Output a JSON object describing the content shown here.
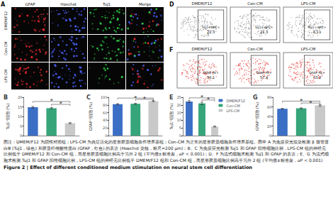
{
  "panels": {
    "A": {
      "label": "A",
      "columns": [
        "GFAP",
        "Hoechst",
        "Tuj1",
        "Merge"
      ],
      "rows": [
        "DMEM/F12",
        "Con-CM",
        "LPS-CM"
      ]
    },
    "D": {
      "label": "D",
      "plots": [
        {
          "title": "DMEM/F12",
          "gate": "Tuj1+APC+",
          "percent": 22.3
        },
        {
          "title": "Con-CM",
          "gate": "Tuj1+APC+",
          "percent": 21.3
        },
        {
          "title": "LPS-CM",
          "gate": "Tuj1+APC+",
          "percent": 6.11
        }
      ]
    },
    "F": {
      "label": "F",
      "plots": [
        {
          "title": "DMEM/F12",
          "gate": "GFAP PE+",
          "percent": 56.1
        },
        {
          "title": "Con-CM",
          "gate": "GFAP PE+",
          "percent": 57.4
        },
        {
          "title": "LPS-CM",
          "gate": "GFAP PE+",
          "percent": 63.2
        }
      ]
    }
  },
  "chart_data": [
    {
      "type": "bar",
      "title": "B",
      "y_label": "Tuj1⁺细胞 (%)",
      "categories": [
        "DMEM/F12",
        "Con-CM",
        "LPS-CM"
      ],
      "values": [
        14.8,
        14.3,
        6.5
      ],
      "errors": [
        0.4,
        0.4,
        0.3
      ],
      "colors": [
        "#3b6fc6",
        "#36a57a",
        "#c9c9c9"
      ],
      "ylim": [
        0,
        20
      ],
      "yticks": [
        0,
        5,
        10,
        15,
        20
      ],
      "brackets": [
        {
          "from": 0,
          "to": 2,
          "y": 17.8,
          "label": "a"
        },
        {
          "from": 1,
          "to": 2,
          "y": 16.3,
          "label": "a"
        }
      ],
      "grid": false,
      "tick_labels": "y"
    },
    {
      "type": "bar",
      "title": "C",
      "y_label": "GFAP⁺细胞 (%)",
      "categories": [
        "DMEM/F12",
        "Con-CM",
        "LPS-CM"
      ],
      "values": [
        82,
        83,
        90
      ],
      "errors": [
        1.5,
        1.5,
        1.5
      ],
      "colors": [
        "#3b6fc6",
        "#36a57a",
        "#c9c9c9"
      ],
      "ylim": [
        0,
        100
      ],
      "yticks": [
        0,
        20,
        40,
        60,
        80,
        100
      ],
      "brackets": [
        {
          "from": 0,
          "to": 2,
          "y": 98,
          "label": "a"
        },
        {
          "from": 1,
          "to": 2,
          "y": 94.5,
          "label": "a"
        }
      ],
      "grid": false,
      "tick_labels": "y"
    },
    {
      "type": "bar",
      "title": "E",
      "y_label": "Tuj1⁺细胞 (%)",
      "categories": [
        "DMEM/F12",
        "Con-CM",
        "LPS-CM"
      ],
      "values": [
        22.2,
        21.0,
        5.9
      ],
      "errors": [
        0.6,
        0.8,
        0.3
      ],
      "colors": [
        "#3b6fc6",
        "#36a57a",
        "#c9c9c9"
      ],
      "ylim": [
        0,
        25
      ],
      "yticks": [
        0,
        5,
        10,
        15,
        20,
        25
      ],
      "brackets": [
        {
          "from": 0,
          "to": 2,
          "y": 24.6,
          "label": "a"
        },
        {
          "from": 1,
          "to": 2,
          "y": 23.2,
          "label": "a"
        }
      ],
      "grid": false,
      "tick_labels": "y",
      "legend": "upper right"
    },
    {
      "type": "bar",
      "title": "G",
      "y_label": "GFAP⁺细胞 (%)",
      "categories": [
        "DMEM/F12",
        "Con-CM",
        "LPS-CM"
      ],
      "values": [
        56,
        57,
        63
      ],
      "errors": [
        1,
        1,
        1.5
      ],
      "colors": [
        "#3b6fc6",
        "#36a57a",
        "#c9c9c9"
      ],
      "ylim": [
        0,
        80
      ],
      "yticks": [
        0,
        20,
        40,
        60,
        80
      ],
      "brackets": [
        {
          "from": 0,
          "to": 2,
          "y": 72,
          "label": "a"
        },
        {
          "from": 1,
          "to": 2,
          "y": 68,
          "label": "a"
        }
      ],
      "grid": false,
      "tick_labels": "y"
    }
  ],
  "caption": "图注：DMEM/F12 为阴性对照组；LPS-CM 为炎症活化的星形胶质细胞条件培养基组；Con-CM 为正常的星形胶质细胞条件培养基组。图中 A 为免疫荧光双染检测 β 微管蛋白Ⅲ (Tuj1，绿色) 和胶质纤维酸性蛋白 (GFAP，红色) 的表达 (Hoechst 染核，标尺=200 μm)；B、C 为免疫荧光检测 Tuj1 和 GFAP 阳性细胞比例，LPS-CM 组的神经元比例低于 DMEM/F12 和 Con-CM 组，而星形胶质细胞比例高于另外 2 组 (平均值±标准差，aP < 0.001)；D、F 为流式细胞术检测 Tuj1 和 GFAP 的表达；E、G 为流式细胞术检测 Tuj1 和 GFAP 阳性细胞比例，LPS-CM 组的神经元比例低于 DMEM/F12 组和 Con-CM 组，而星形胶质细胞比例高于另外 2 组 (平均值±标准差，aP < 0.001)",
  "figure_title": "Figure 2 | Effect of different conditioned medium stimulation on neural stem cell differentiation"
}
